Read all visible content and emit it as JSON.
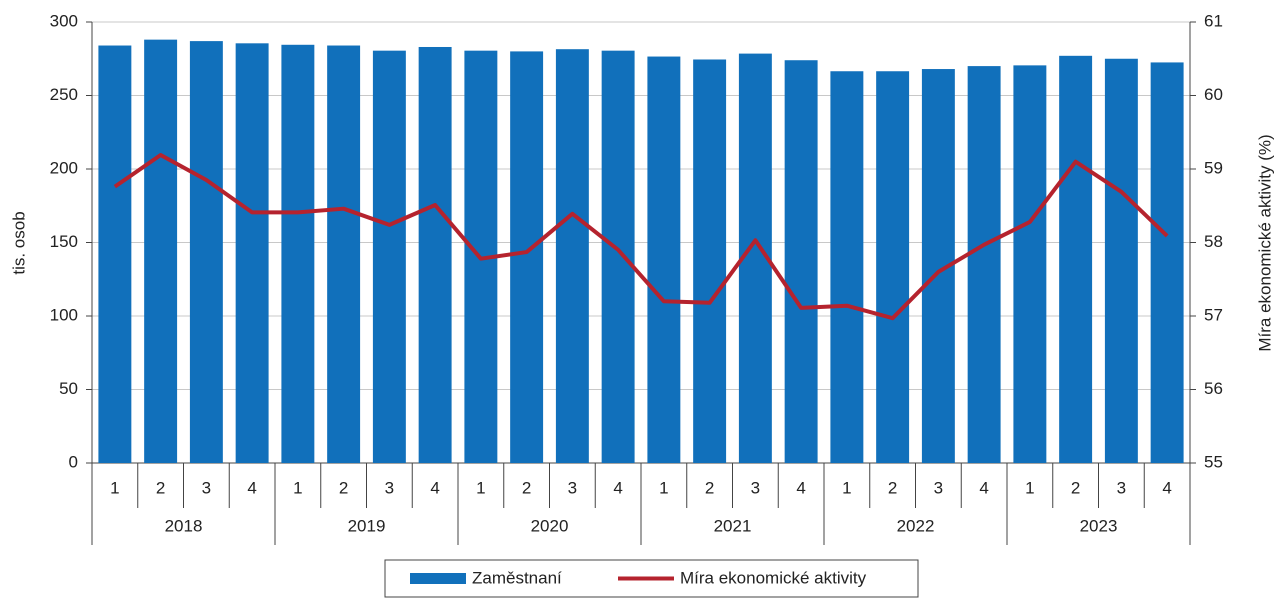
{
  "chart_data": {
    "type": "combo",
    "categories": [
      "1",
      "2",
      "3",
      "4",
      "1",
      "2",
      "3",
      "4",
      "1",
      "2",
      "3",
      "4",
      "1",
      "2",
      "3",
      "4",
      "1",
      "2",
      "3",
      "4",
      "1",
      "2",
      "3",
      "4"
    ],
    "groups": [
      "2018",
      "2019",
      "2020",
      "2021",
      "2022",
      "2023"
    ],
    "ylabel": "tis. osob",
    "y2label": "Míra ekonomické aktivity (%)",
    "ylim": [
      0,
      300
    ],
    "yticks": [
      0,
      50,
      100,
      150,
      200,
      250,
      300
    ],
    "y2lim": [
      55,
      61
    ],
    "y2ticks": [
      55,
      56,
      57,
      58,
      59,
      60,
      61
    ],
    "grid": true,
    "series": [
      {
        "name": "Zaměstnaní",
        "type": "bar",
        "color": "#1170bb",
        "values": [
          284,
          288,
          287,
          285.5,
          284.5,
          284,
          280.5,
          283,
          280.5,
          280,
          281.5,
          280.5,
          276.5,
          274.5,
          278.5,
          274,
          266.5,
          266.5,
          268,
          270,
          270.5,
          277,
          275,
          272.5
        ]
      },
      {
        "name": "Míra ekonomické aktivity",
        "type": "line",
        "axis": "y2",
        "color": "#b5232e",
        "values": [
          58.76,
          59.19,
          58.85,
          58.41,
          58.41,
          58.46,
          58.24,
          58.51,
          57.78,
          57.87,
          58.39,
          57.9,
          57.2,
          57.18,
          58.03,
          57.11,
          57.14,
          56.97,
          57.6,
          57.97,
          58.28,
          59.1,
          58.69,
          58.09
        ]
      }
    ]
  }
}
